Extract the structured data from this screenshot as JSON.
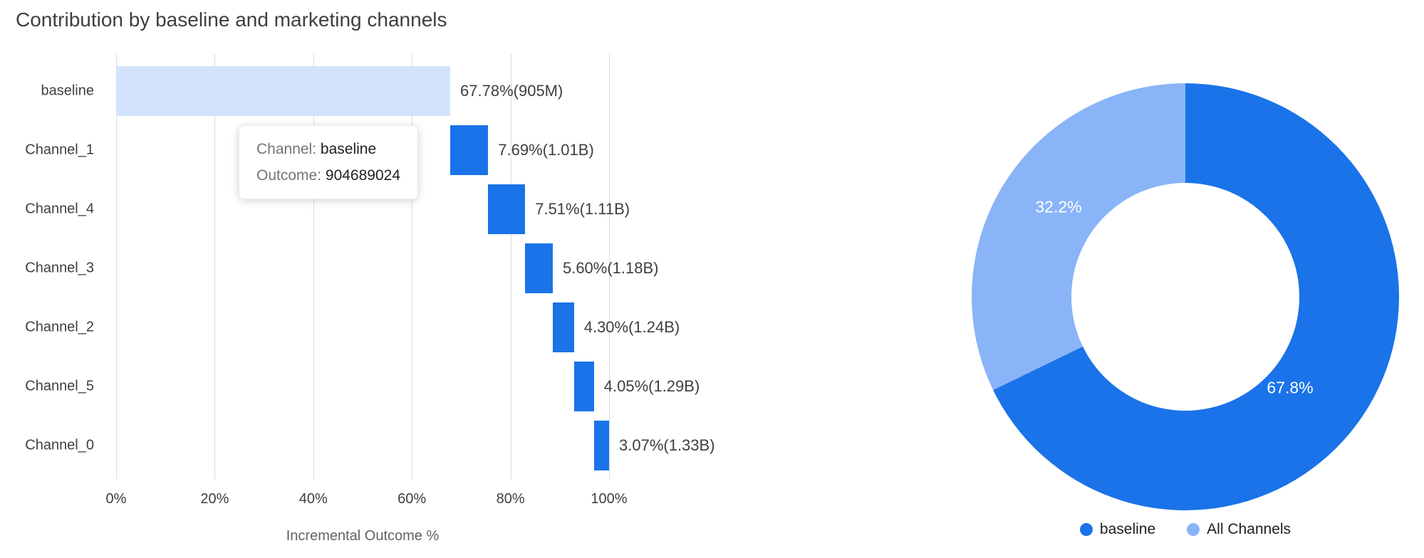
{
  "title": "Contribution by baseline and marketing channels",
  "colors": {
    "baseline_bar": "#D2E3FC",
    "channel_bar": "#1A73E8",
    "donut_dark": "#1A73E8",
    "donut_light": "#8AB4F8",
    "gridline": "#DADCE0"
  },
  "tooltip": {
    "channel_label": "Channel:",
    "channel_value": "baseline",
    "outcome_label": "Outcome:",
    "outcome_value": "904689024"
  },
  "chart_data": [
    {
      "type": "bar",
      "subtype": "waterfall",
      "title": "Contribution by baseline and marketing channels",
      "xlabel": "Incremental Outcome %",
      "x_ticks": [
        "0%",
        "20%",
        "40%",
        "60%",
        "80%",
        "100%"
      ],
      "x_tick_values": [
        0,
        20,
        40,
        60,
        80,
        100
      ],
      "xlim": [
        0,
        100
      ],
      "grid": true,
      "rows": [
        {
          "label": "baseline",
          "start": 0,
          "end": 67.78,
          "value": 67.78,
          "value_label": "67.78%(905M)",
          "color_key": "baseline"
        },
        {
          "label": "Channel_1",
          "start": 67.78,
          "end": 75.47,
          "value": 7.69,
          "value_label": "7.69%(1.01B)",
          "color_key": "channel"
        },
        {
          "label": "Channel_4",
          "start": 75.47,
          "end": 82.98,
          "value": 7.51,
          "value_label": "7.51%(1.11B)",
          "color_key": "channel"
        },
        {
          "label": "Channel_3",
          "start": 82.98,
          "end": 88.58,
          "value": 5.6,
          "value_label": "5.60%(1.18B)",
          "color_key": "channel"
        },
        {
          "label": "Channel_2",
          "start": 88.58,
          "end": 92.88,
          "value": 4.3,
          "value_label": "4.30%(1.24B)",
          "color_key": "channel"
        },
        {
          "label": "Channel_5",
          "start": 92.88,
          "end": 96.93,
          "value": 4.05,
          "value_label": "4.05%(1.29B)",
          "color_key": "channel"
        },
        {
          "label": "Channel_0",
          "start": 96.93,
          "end": 100.0,
          "value": 3.07,
          "value_label": "3.07%(1.33B)",
          "color_key": "channel"
        }
      ]
    },
    {
      "type": "pie",
      "subtype": "donut",
      "legend_position": "bottom",
      "slices": [
        {
          "label": "baseline",
          "value": 67.8,
          "display": "67.8%",
          "color": "#1A73E8"
        },
        {
          "label": "All Channels",
          "value": 32.2,
          "display": "32.2%",
          "color": "#8AB4F8"
        }
      ]
    }
  ]
}
